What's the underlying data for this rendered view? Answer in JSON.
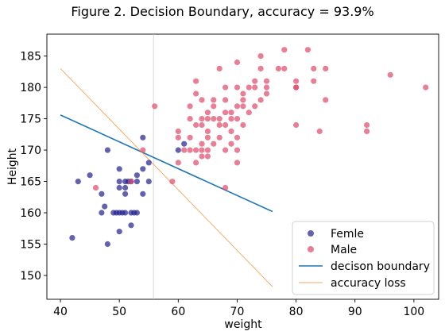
{
  "chart_data": {
    "type": "scatter",
    "title": "Figure 2. Decision Boundary, accuracy = 93.9%",
    "xlabel": "weight",
    "ylabel": "Height",
    "xlim": [
      37.7,
      104.2
    ],
    "ylim": [
      146.2,
      188.5
    ],
    "xticks": [
      "40",
      "50",
      "60",
      "70",
      "80",
      "90",
      "100"
    ],
    "yticks": [
      "150",
      "155",
      "160",
      "165",
      "170",
      "175",
      "180",
      "185"
    ],
    "grid": false,
    "legend_position": "bottom-right",
    "series": [
      {
        "name": "Femle",
        "kind": "scatter",
        "color": "#1f1f8f",
        "points": [
          [
            42,
            156
          ],
          [
            43,
            165
          ],
          [
            45,
            166
          ],
          [
            47,
            163
          ],
          [
            47,
            160
          ],
          [
            47.5,
            161
          ],
          [
            48,
            170
          ],
          [
            48,
            155
          ],
          [
            49,
            160
          ],
          [
            49.5,
            160
          ],
          [
            50,
            160
          ],
          [
            50,
            164
          ],
          [
            50,
            165
          ],
          [
            50,
            167
          ],
          [
            50,
            157
          ],
          [
            50.5,
            160
          ],
          [
            51,
            165
          ],
          [
            51,
            164
          ],
          [
            51,
            163
          ],
          [
            51,
            160
          ],
          [
            51.5,
            165
          ],
          [
            52,
            165
          ],
          [
            52,
            160
          ],
          [
            52,
            158
          ],
          [
            52.5,
            160
          ],
          [
            53,
            160
          ],
          [
            53,
            166
          ],
          [
            53,
            165
          ],
          [
            54,
            163
          ],
          [
            54,
            172
          ],
          [
            54,
            167
          ],
          [
            55,
            165
          ],
          [
            55,
            168
          ],
          [
            61,
            171
          ],
          [
            60,
            170
          ]
        ]
      },
      {
        "name": "Male",
        "kind": "scatter",
        "color": "#e0486a",
        "points": [
          [
            46,
            164
          ],
          [
            52,
            165
          ],
          [
            54,
            170
          ],
          [
            56,
            177
          ],
          [
            59,
            165
          ],
          [
            60,
            168
          ],
          [
            60,
            172
          ],
          [
            60,
            173
          ],
          [
            61,
            170
          ],
          [
            62,
            170
          ],
          [
            62,
            172
          ],
          [
            62,
            175
          ],
          [
            62,
            177
          ],
          [
            63,
            170
          ],
          [
            63,
            168
          ],
          [
            63,
            181
          ],
          [
            63,
            174
          ],
          [
            63,
            179
          ],
          [
            64,
            169
          ],
          [
            64,
            170
          ],
          [
            64,
            171
          ],
          [
            64,
            174
          ],
          [
            64,
            175
          ],
          [
            64,
            178
          ],
          [
            65,
            169
          ],
          [
            65,
            172
          ],
          [
            65,
            173
          ],
          [
            65,
            175
          ],
          [
            65,
            176
          ],
          [
            65,
            170
          ],
          [
            66,
            171
          ],
          [
            66,
            175
          ],
          [
            66,
            177
          ],
          [
            66,
            178
          ],
          [
            67,
            172
          ],
          [
            67,
            174
          ],
          [
            67,
            175
          ],
          [
            67,
            183
          ],
          [
            68,
            164
          ],
          [
            68,
            170
          ],
          [
            68,
            174
          ],
          [
            68,
            176
          ],
          [
            68,
            178
          ],
          [
            68,
            180
          ],
          [
            69,
            171
          ],
          [
            69,
            173
          ],
          [
            69,
            175
          ],
          [
            69,
            176
          ],
          [
            70,
            168
          ],
          [
            70,
            170
          ],
          [
            70,
            172
          ],
          [
            70,
            175
          ],
          [
            70,
            177
          ],
          [
            70,
            180
          ],
          [
            70,
            184
          ],
          [
            71,
            174
          ],
          [
            71,
            177
          ],
          [
            71,
            178
          ],
          [
            71,
            179
          ],
          [
            72,
            176
          ],
          [
            72,
            180
          ],
          [
            73,
            177
          ],
          [
            73,
            180
          ],
          [
            73,
            181
          ],
          [
            74,
            178
          ],
          [
            74,
            183
          ],
          [
            74,
            185
          ],
          [
            75,
            180
          ],
          [
            75,
            181
          ],
          [
            75,
            179
          ],
          [
            77,
            183
          ],
          [
            78,
            183
          ],
          [
            78,
            186
          ],
          [
            80,
            174
          ],
          [
            80,
            180
          ],
          [
            80,
            181
          ],
          [
            80,
            180
          ],
          [
            82,
            186
          ],
          [
            83,
            181
          ],
          [
            83,
            183
          ],
          [
            84,
            173
          ],
          [
            85,
            178
          ],
          [
            85,
            183
          ],
          [
            92,
            174
          ],
          [
            92,
            173
          ],
          [
            96,
            182
          ],
          [
            102,
            180
          ]
        ]
      },
      {
        "name": "decison boundary",
        "kind": "line",
        "color": "#1f77b4",
        "points": [
          [
            40,
            175.6
          ],
          [
            76,
            160.2
          ]
        ]
      },
      {
        "name": "accuracy loss",
        "kind": "line",
        "color": "#f5a65b",
        "points": [
          [
            40,
            183.0
          ],
          [
            76,
            148.2
          ]
        ]
      }
    ],
    "reference_line": {
      "orientation": "vertical",
      "x": 55.8,
      "color": "#cccccc"
    }
  }
}
